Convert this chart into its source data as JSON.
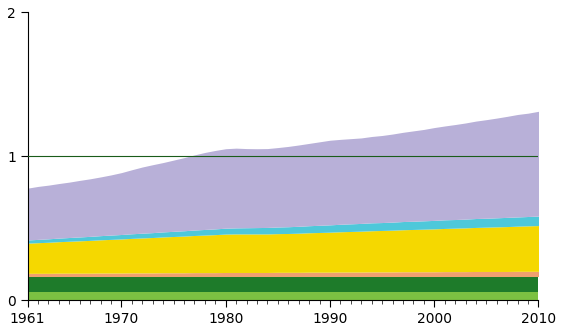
{
  "years": [
    1961,
    1962,
    1963,
    1964,
    1965,
    1966,
    1967,
    1968,
    1969,
    1970,
    1971,
    1972,
    1973,
    1974,
    1975,
    1976,
    1977,
    1978,
    1979,
    1980,
    1981,
    1982,
    1983,
    1984,
    1985,
    1986,
    1987,
    1988,
    1989,
    1990,
    1991,
    1992,
    1993,
    1994,
    1995,
    1996,
    1997,
    1998,
    1999,
    2000,
    2001,
    2002,
    2003,
    2004,
    2005,
    2006,
    2007,
    2008,
    2009,
    2010
  ],
  "layers": {
    "light_green": [
      0.055,
      0.055,
      0.055,
      0.055,
      0.055,
      0.055,
      0.055,
      0.055,
      0.055,
      0.055,
      0.055,
      0.055,
      0.055,
      0.055,
      0.055,
      0.055,
      0.055,
      0.055,
      0.055,
      0.055,
      0.055,
      0.055,
      0.055,
      0.055,
      0.055,
      0.055,
      0.055,
      0.055,
      0.055,
      0.055,
      0.055,
      0.055,
      0.055,
      0.055,
      0.055,
      0.055,
      0.055,
      0.055,
      0.055,
      0.055,
      0.055,
      0.055,
      0.055,
      0.055,
      0.055,
      0.055,
      0.055,
      0.055,
      0.055,
      0.055
    ],
    "dark_green": [
      0.11,
      0.11,
      0.11,
      0.11,
      0.11,
      0.11,
      0.11,
      0.11,
      0.11,
      0.11,
      0.11,
      0.11,
      0.11,
      0.11,
      0.11,
      0.11,
      0.11,
      0.11,
      0.11,
      0.11,
      0.11,
      0.11,
      0.11,
      0.11,
      0.11,
      0.11,
      0.11,
      0.11,
      0.11,
      0.11,
      0.11,
      0.11,
      0.11,
      0.11,
      0.11,
      0.11,
      0.11,
      0.11,
      0.11,
      0.11,
      0.11,
      0.11,
      0.11,
      0.11,
      0.11,
      0.11,
      0.11,
      0.11,
      0.11,
      0.11
    ],
    "salmon": [
      0.022,
      0.022,
      0.022,
      0.023,
      0.023,
      0.023,
      0.023,
      0.024,
      0.024,
      0.024,
      0.025,
      0.025,
      0.025,
      0.026,
      0.026,
      0.026,
      0.027,
      0.027,
      0.027,
      0.028,
      0.028,
      0.028,
      0.028,
      0.028,
      0.029,
      0.029,
      0.029,
      0.03,
      0.03,
      0.03,
      0.031,
      0.031,
      0.031,
      0.032,
      0.032,
      0.032,
      0.033,
      0.033,
      0.033,
      0.033,
      0.034,
      0.034,
      0.034,
      0.035,
      0.035,
      0.035,
      0.035,
      0.036,
      0.036,
      0.036
    ],
    "yellow": [
      0.21,
      0.213,
      0.216,
      0.219,
      0.222,
      0.225,
      0.228,
      0.231,
      0.234,
      0.237,
      0.24,
      0.243,
      0.246,
      0.249,
      0.252,
      0.255,
      0.258,
      0.261,
      0.264,
      0.267,
      0.268,
      0.268,
      0.268,
      0.268,
      0.269,
      0.27,
      0.272,
      0.274,
      0.276,
      0.278,
      0.28,
      0.282,
      0.284,
      0.286,
      0.288,
      0.29,
      0.292,
      0.294,
      0.296,
      0.298,
      0.3,
      0.302,
      0.304,
      0.306,
      0.308,
      0.31,
      0.312,
      0.314,
      0.316,
      0.318
    ],
    "cyan": [
      0.022,
      0.023,
      0.024,
      0.025,
      0.026,
      0.027,
      0.028,
      0.029,
      0.03,
      0.031,
      0.032,
      0.033,
      0.034,
      0.035,
      0.036,
      0.037,
      0.038,
      0.039,
      0.04,
      0.041,
      0.042,
      0.043,
      0.044,
      0.045,
      0.046,
      0.047,
      0.048,
      0.049,
      0.05,
      0.051,
      0.052,
      0.053,
      0.054,
      0.055,
      0.055,
      0.056,
      0.057,
      0.057,
      0.058,
      0.059,
      0.06,
      0.06,
      0.061,
      0.062,
      0.062,
      0.063,
      0.064,
      0.064,
      0.065,
      0.066
    ],
    "lavender": [
      0.36,
      0.368,
      0.373,
      0.379,
      0.385,
      0.393,
      0.4,
      0.408,
      0.418,
      0.43,
      0.445,
      0.46,
      0.472,
      0.482,
      0.495,
      0.508,
      0.522,
      0.535,
      0.545,
      0.552,
      0.554,
      0.55,
      0.548,
      0.548,
      0.552,
      0.558,
      0.565,
      0.572,
      0.58,
      0.588,
      0.59,
      0.592,
      0.594,
      0.6,
      0.605,
      0.612,
      0.62,
      0.628,
      0.635,
      0.645,
      0.652,
      0.66,
      0.668,
      0.677,
      0.685,
      0.693,
      0.702,
      0.712,
      0.718,
      0.728
    ]
  },
  "colors": {
    "light_green": "#7CC142",
    "dark_green": "#1E7B2A",
    "salmon": "#F0A070",
    "yellow": "#F5D800",
    "cyan": "#4EC8DA",
    "lavender": "#B8B0D8"
  },
  "hline_y": 1.0,
  "hline_color": "#1A5C1A",
  "xlim": [
    1961,
    2010
  ],
  "ylim": [
    0,
    2.0
  ],
  "yticks": [
    0,
    1,
    2
  ],
  "xticks": [
    1961,
    1970,
    1980,
    1990,
    2000,
    2010
  ],
  "xticklabels": [
    "1961",
    "1970",
    "1980",
    "1990",
    "2000",
    "2010"
  ]
}
